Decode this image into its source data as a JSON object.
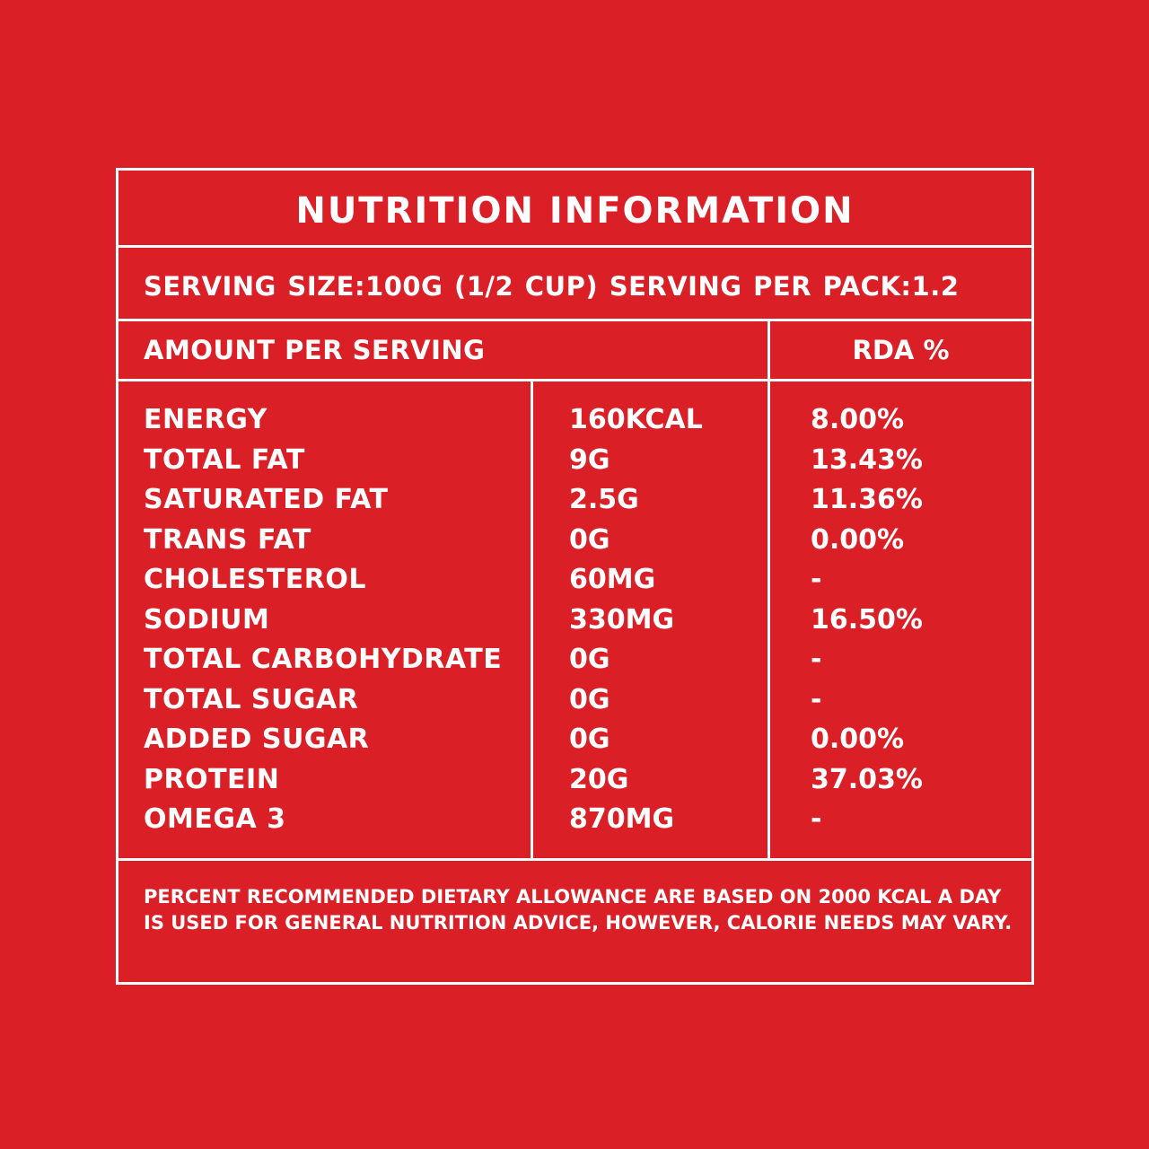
{
  "label": {
    "title": "NUTRITION INFORMATION",
    "serving_line": "SERVING SIZE:100G (1/2 CUP)  SERVING PER PACK:1.2",
    "amount_header": "AMOUNT PER SERVING",
    "rda_header": "RDA %",
    "rows": [
      {
        "name": "ENERGY",
        "amount": "160KCAL",
        "rda": "8.00%"
      },
      {
        "name": "TOTAL FAT",
        "amount": "9G",
        "rda": "13.43%"
      },
      {
        "name": "SATURATED FAT",
        "amount": "2.5G",
        "rda": "11.36%"
      },
      {
        "name": "TRANS FAT",
        "amount": "0G",
        "rda": "0.00%"
      },
      {
        "name": "CHOLESTEROL",
        "amount": "60MG",
        "rda": "-"
      },
      {
        "name": "SODIUM",
        "amount": "330MG",
        "rda": "16.50%"
      },
      {
        "name": "TOTAL CARBOHYDRATE",
        "amount": "0G",
        "rda": "-"
      },
      {
        "name": "TOTAL SUGAR",
        "amount": "0G",
        "rda": "-"
      },
      {
        "name": "ADDED SUGAR",
        "amount": "0G",
        "rda": "0.00%"
      },
      {
        "name": "PROTEIN",
        "amount": "20G",
        "rda": "37.03%"
      },
      {
        "name": "OMEGA 3",
        "amount": "870MG",
        "rda": "-"
      }
    ],
    "footnote": "PERCENT RECOMMENDED DIETARY ALLOWANCE ARE BASED ON 2000 KCAL A DAY IS USED FOR GENERAL NUTRITION ADVICE, HOWEVER, CALORIE NEEDS MAY VARY."
  },
  "colors": {
    "background": "#db1f27",
    "foreground": "#ffffff"
  }
}
